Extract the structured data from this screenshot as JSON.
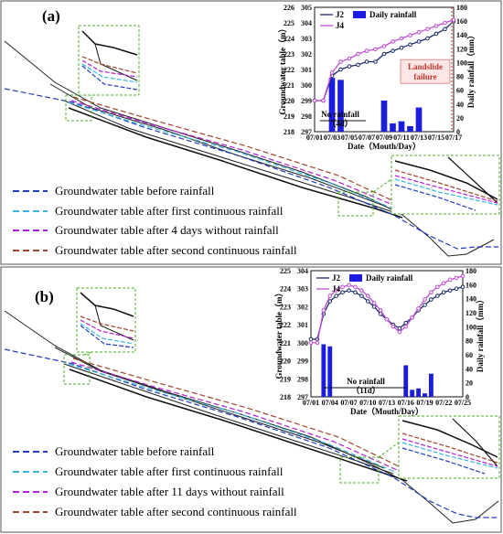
{
  "panels": [
    {
      "label": "(a)",
      "legend": [
        {
          "text": "Groundwater table before rainfall",
          "color": "#1f3fbf"
        },
        {
          "text": "Groundwater table after first continuous rainfall",
          "color": "#38b6e0"
        },
        {
          "text": "Groundwater table after 4 days without rainfall",
          "color": "#b31fd8"
        },
        {
          "text": "Groundwater table after second continuous rainfall",
          "color": "#a0442a"
        }
      ],
      "inset": {
        "ylabel_left": "Groundwater table（m）",
        "ylabel_right": "Daily rainfall（mm）",
        "xlabel": "Date（Mouth/Day）",
        "series_labels": [
          "J2",
          "J4"
        ],
        "bar_label": "Daily rainfall",
        "annotation_norain": "No rainfall",
        "annotation_norain_days": "（4d）",
        "annotation_failure_line1": "Landslide",
        "annotation_failure_line2": "failure",
        "left_axis_outer": [
          "218",
          "219",
          "220",
          "221",
          "222",
          "223",
          "224",
          "225",
          "226"
        ],
        "left_axis_inner": [
          "297",
          "298",
          "299",
          "300",
          "301",
          "302",
          "303",
          "304",
          "305"
        ],
        "right_axis": [
          "0",
          "20",
          "40",
          "60",
          "80",
          "100",
          "120",
          "140",
          "160",
          "180"
        ],
        "x_ticks": [
          "07/01",
          "07/03",
          "07/05",
          "07/07",
          "07/09",
          "07/11",
          "07/13",
          "07/15",
          "07/17"
        ]
      },
      "chart_data": {
        "type": "bar",
        "categories": [
          "07/01",
          "07/02",
          "07/03",
          "07/04",
          "07/05",
          "07/06",
          "07/07",
          "07/08",
          "07/09",
          "07/10",
          "07/11",
          "07/12",
          "07/13",
          "07/14",
          "07/15",
          "07/16",
          "07/17"
        ],
        "series": [
          {
            "name": "Daily rainfall",
            "type": "bar",
            "values": [
              0,
              0,
              78,
              75,
              0,
              0,
              0,
              0,
              45,
              12,
              15,
              8,
              35,
              0,
              0,
              0,
              0
            ]
          },
          {
            "name": "J2",
            "type": "line",
            "values": [
              220.0,
              220.0,
              221.6,
              222.0,
              222.2,
              222.3,
              222.5,
              222.5,
              223.0,
              223.2,
              223.4,
              223.6,
              223.8,
              224.0,
              224.3,
              224.6,
              225.1
            ]
          },
          {
            "name": "J4",
            "type": "line",
            "values": [
              299.0,
              299.0,
              300.8,
              301.5,
              301.7,
              302.0,
              302.2,
              302.3,
              302.5,
              302.8,
              303.0,
              303.2,
              303.4,
              303.6,
              303.8,
              304.0,
              304.2
            ]
          }
        ],
        "ylim_left": [
          218,
          226
        ],
        "ylim_right": [
          0,
          180
        ]
      }
    },
    {
      "label": "(b)",
      "legend": [
        {
          "text": "Groundwater table before rainfall",
          "color": "#1f3fbf"
        },
        {
          "text": "Groundwater table after first continuous rainfall",
          "color": "#38b6e0"
        },
        {
          "text": "Groundwater table after 11 days without rainfall",
          "color": "#b31fd8"
        },
        {
          "text": "Groundwater table after second continuous rainfall",
          "color": "#a0442a"
        }
      ],
      "inset": {
        "ylabel_left": "Groundwater table（m）",
        "ylabel_right": "Daily rainfall（mm）",
        "xlabel": "Date（Mouth/Day）",
        "series_labels": [
          "J2",
          "J4"
        ],
        "bar_label": "Daily rainfall",
        "annotation_norain": "No rainfall",
        "annotation_norain_days": "（11d）",
        "left_axis_outer": [
          "218",
          "219",
          "220",
          "221",
          "222",
          "223",
          "224",
          "225"
        ],
        "left_axis_inner": [
          "297",
          "298",
          "299",
          "300",
          "301",
          "302",
          "303",
          "304"
        ],
        "right_axis": [
          "0",
          "20",
          "40",
          "60",
          "80",
          "100",
          "120",
          "140",
          "160",
          "180"
        ],
        "x_ticks": [
          "07/01",
          "07/04",
          "07/07",
          "07/10",
          "07/13",
          "07/16",
          "07/19",
          "07/22",
          "07/25"
        ]
      },
      "chart_data": {
        "type": "bar",
        "categories": [
          "07/01",
          "07/02",
          "07/03",
          "07/04",
          "07/05",
          "07/06",
          "07/07",
          "07/08",
          "07/09",
          "07/10",
          "07/11",
          "07/12",
          "07/13",
          "07/14",
          "07/15",
          "07/16",
          "07/17",
          "07/18",
          "07/19",
          "07/20",
          "07/21",
          "07/22",
          "07/23",
          "07/24",
          "07/25"
        ],
        "series": [
          {
            "name": "Daily rainfall",
            "type": "bar",
            "values": [
              0,
              0,
              75,
              72,
              0,
              0,
              0,
              0,
              0,
              0,
              0,
              0,
              0,
              0,
              0,
              45,
              10,
              12,
              5,
              33,
              0,
              0,
              0,
              0,
              0
            ]
          },
          {
            "name": "J2",
            "type": "line",
            "values": [
              221.2,
              221.2,
              222.6,
              223.3,
              223.6,
              223.8,
              223.9,
              223.8,
              223.6,
              223.3,
              223.0,
              222.6,
              222.3,
              222.0,
              221.8,
              222.1,
              222.4,
              222.8,
              223.1,
              223.4,
              223.6,
              223.8,
              223.9,
              224.0,
              224.1
            ]
          },
          {
            "name": "J4",
            "type": "line",
            "values": [
              300.0,
              300.0,
              301.8,
              302.6,
              302.9,
              303.1,
              303.2,
              303.1,
              302.9,
              302.6,
              302.2,
              301.8,
              301.3,
              300.9,
              300.6,
              300.9,
              301.4,
              301.9,
              302.4,
              302.8,
              303.1,
              303.3,
              303.5,
              303.6,
              303.7
            ]
          }
        ],
        "ylim_left": [
          218,
          225
        ],
        "ylim_right": [
          0,
          180
        ]
      }
    }
  ]
}
